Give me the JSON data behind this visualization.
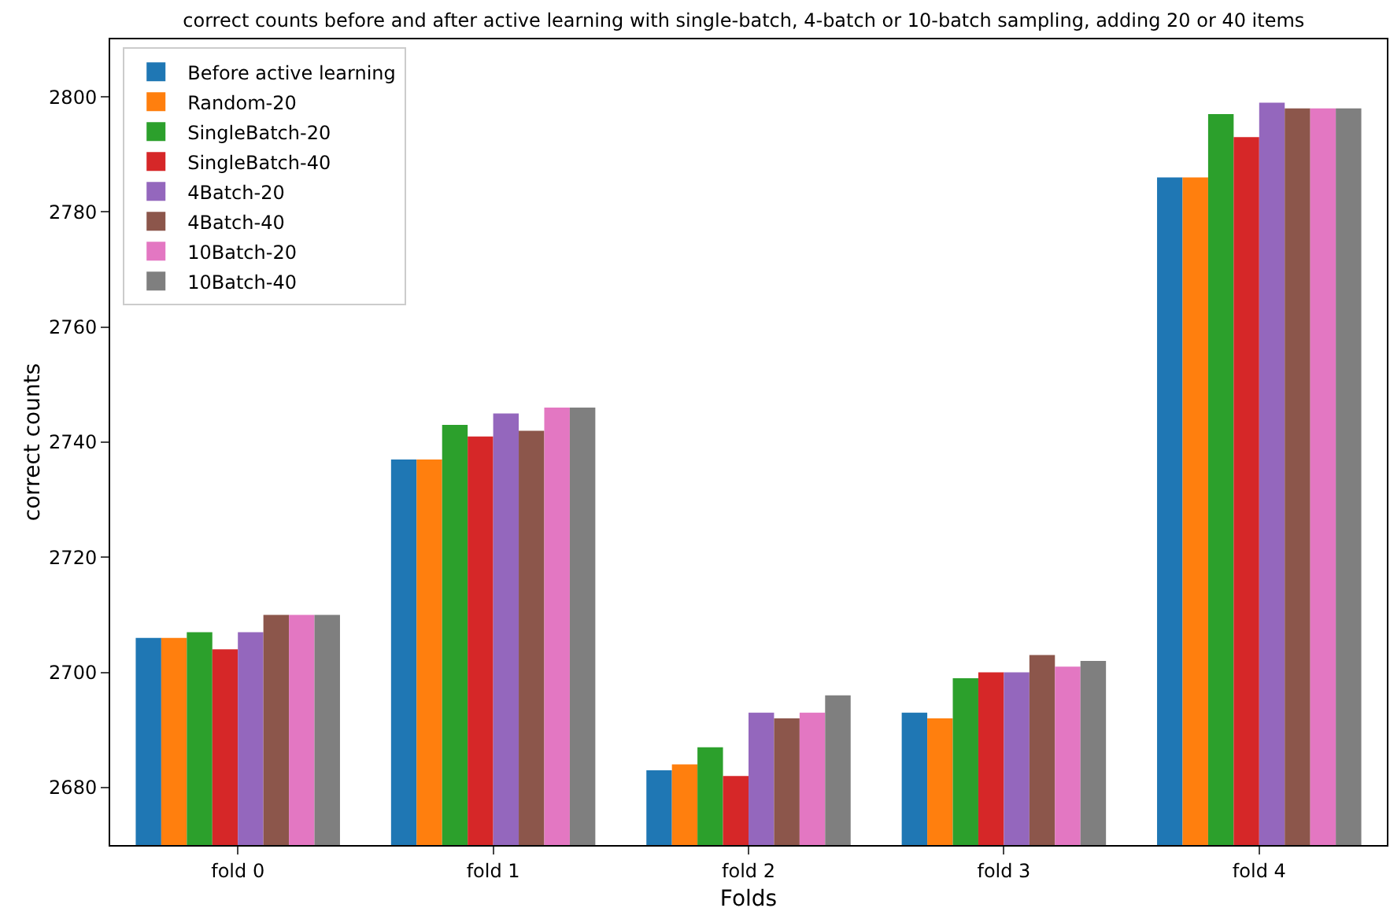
{
  "chart_data": {
    "type": "bar",
    "title": "correct counts before and after active learning with single-batch, 4-batch or 10-batch sampling, adding 20 or 40 items",
    "xlabel": "Folds",
    "ylabel": "correct counts",
    "categories": [
      "fold 0",
      "fold 1",
      "fold 2",
      "fold 3",
      "fold 4"
    ],
    "series": [
      {
        "name": "Before active learning",
        "color": "#1f77b4",
        "values": [
          2706,
          2737,
          2683,
          2693,
          2786
        ]
      },
      {
        "name": "Random-20",
        "color": "#ff7f0e",
        "values": [
          2706,
          2737,
          2684,
          2692,
          2786
        ]
      },
      {
        "name": "SingleBatch-20",
        "color": "#2ca02c",
        "values": [
          2707,
          2743,
          2687,
          2699,
          2797
        ]
      },
      {
        "name": "SingleBatch-40",
        "color": "#d62728",
        "values": [
          2704,
          2741,
          2682,
          2700,
          2793
        ]
      },
      {
        "name": "4Batch-20",
        "color": "#9467bd",
        "values": [
          2707,
          2745,
          2693,
          2700,
          2799
        ]
      },
      {
        "name": "4Batch-40",
        "color": "#8c564b",
        "values": [
          2710,
          2742,
          2692,
          2703,
          2798
        ]
      },
      {
        "name": "10Batch-20",
        "color": "#e377c2",
        "values": [
          2710,
          2746,
          2693,
          2701,
          2798
        ]
      },
      {
        "name": "10Batch-40",
        "color": "#7f7f7f",
        "values": [
          2710,
          2746,
          2696,
          2702,
          2798
        ]
      }
    ],
    "ylim": [
      2670,
      2810
    ],
    "yticks": [
      2680,
      2700,
      2720,
      2740,
      2760,
      2780,
      2800
    ],
    "grid": false,
    "legend": "top left"
  }
}
